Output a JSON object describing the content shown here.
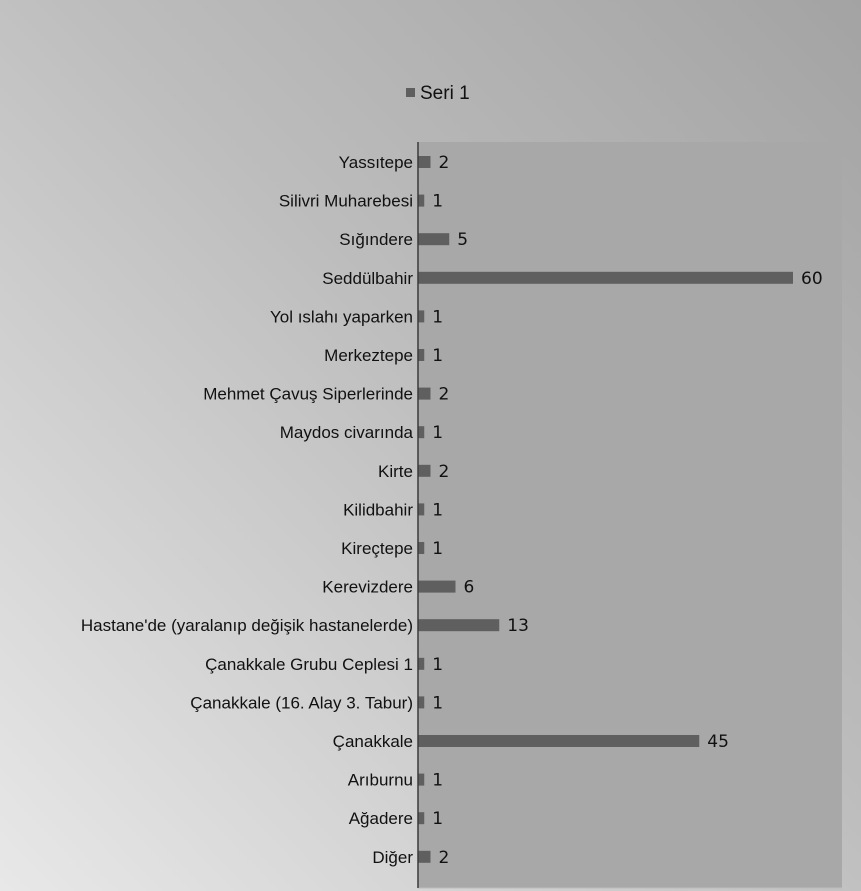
{
  "chart_data": {
    "type": "bar",
    "orientation": "horizontal",
    "categories": [
      "Yassıtepe",
      "Silivri Muharebesi",
      "Sığındere",
      "Seddülbahir",
      "Yol ıslahı yaparken",
      "Merkeztepe",
      "Mehmet Çavuş Siperlerinde",
      "Maydos civarında",
      "Kirte",
      "Kilidbahir",
      "Kireçtepe",
      "Kerevizdere",
      "Hastane'de (yaralanıp değişik hastanelerde)",
      "Çanakkale Grubu Ceplesi 1",
      "Çanakkale (16. Alay 3. Tabur)",
      "Çanakkale",
      "Arıburnu",
      "Ağadere",
      "Diğer"
    ],
    "series": [
      {
        "name": "Seri 1",
        "values": [
          2,
          1,
          5,
          60,
          1,
          1,
          2,
          1,
          2,
          1,
          1,
          6,
          13,
          1,
          1,
          45,
          1,
          1,
          2
        ]
      }
    ],
    "legend_position": "top",
    "xlim": [
      0,
      60
    ],
    "grid": false,
    "bar_color": "#5f5f5f",
    "axis_color": "#3a3a3a",
    "plot_area_color": "#a8a8a8"
  }
}
